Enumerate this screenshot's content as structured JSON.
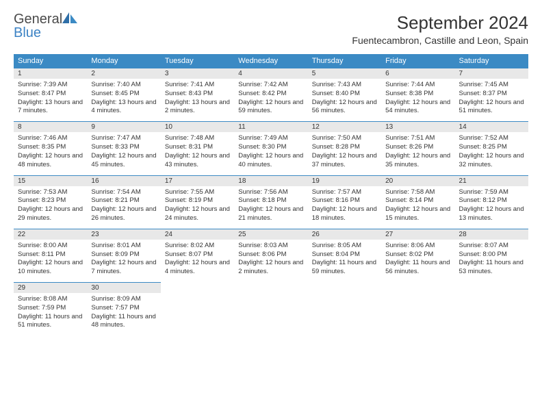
{
  "logo": {
    "word1": "General",
    "word2": "Blue"
  },
  "title": "September 2024",
  "subtitle": "Fuentecambron, Castille and Leon, Spain",
  "colors": {
    "header_bg": "#3b8ac4",
    "header_text": "#ffffff",
    "daynum_bg": "#e8e8e8",
    "row_border": "#3b8ac4",
    "logo_gray": "#4a4a4a",
    "logo_blue": "#3b82c4",
    "text": "#333333",
    "background": "#ffffff"
  },
  "weekdays": [
    "Sunday",
    "Monday",
    "Tuesday",
    "Wednesday",
    "Thursday",
    "Friday",
    "Saturday"
  ],
  "days": [
    {
      "n": "1",
      "sr": "7:39 AM",
      "ss": "8:47 PM",
      "dl": "13 hours and 7 minutes."
    },
    {
      "n": "2",
      "sr": "7:40 AM",
      "ss": "8:45 PM",
      "dl": "13 hours and 4 minutes."
    },
    {
      "n": "3",
      "sr": "7:41 AM",
      "ss": "8:43 PM",
      "dl": "13 hours and 2 minutes."
    },
    {
      "n": "4",
      "sr": "7:42 AM",
      "ss": "8:42 PM",
      "dl": "12 hours and 59 minutes."
    },
    {
      "n": "5",
      "sr": "7:43 AM",
      "ss": "8:40 PM",
      "dl": "12 hours and 56 minutes."
    },
    {
      "n": "6",
      "sr": "7:44 AM",
      "ss": "8:38 PM",
      "dl": "12 hours and 54 minutes."
    },
    {
      "n": "7",
      "sr": "7:45 AM",
      "ss": "8:37 PM",
      "dl": "12 hours and 51 minutes."
    },
    {
      "n": "8",
      "sr": "7:46 AM",
      "ss": "8:35 PM",
      "dl": "12 hours and 48 minutes."
    },
    {
      "n": "9",
      "sr": "7:47 AM",
      "ss": "8:33 PM",
      "dl": "12 hours and 45 minutes."
    },
    {
      "n": "10",
      "sr": "7:48 AM",
      "ss": "8:31 PM",
      "dl": "12 hours and 43 minutes."
    },
    {
      "n": "11",
      "sr": "7:49 AM",
      "ss": "8:30 PM",
      "dl": "12 hours and 40 minutes."
    },
    {
      "n": "12",
      "sr": "7:50 AM",
      "ss": "8:28 PM",
      "dl": "12 hours and 37 minutes."
    },
    {
      "n": "13",
      "sr": "7:51 AM",
      "ss": "8:26 PM",
      "dl": "12 hours and 35 minutes."
    },
    {
      "n": "14",
      "sr": "7:52 AM",
      "ss": "8:25 PM",
      "dl": "12 hours and 32 minutes."
    },
    {
      "n": "15",
      "sr": "7:53 AM",
      "ss": "8:23 PM",
      "dl": "12 hours and 29 minutes."
    },
    {
      "n": "16",
      "sr": "7:54 AM",
      "ss": "8:21 PM",
      "dl": "12 hours and 26 minutes."
    },
    {
      "n": "17",
      "sr": "7:55 AM",
      "ss": "8:19 PM",
      "dl": "12 hours and 24 minutes."
    },
    {
      "n": "18",
      "sr": "7:56 AM",
      "ss": "8:18 PM",
      "dl": "12 hours and 21 minutes."
    },
    {
      "n": "19",
      "sr": "7:57 AM",
      "ss": "8:16 PM",
      "dl": "12 hours and 18 minutes."
    },
    {
      "n": "20",
      "sr": "7:58 AM",
      "ss": "8:14 PM",
      "dl": "12 hours and 15 minutes."
    },
    {
      "n": "21",
      "sr": "7:59 AM",
      "ss": "8:12 PM",
      "dl": "12 hours and 13 minutes."
    },
    {
      "n": "22",
      "sr": "8:00 AM",
      "ss": "8:11 PM",
      "dl": "12 hours and 10 minutes."
    },
    {
      "n": "23",
      "sr": "8:01 AM",
      "ss": "8:09 PM",
      "dl": "12 hours and 7 minutes."
    },
    {
      "n": "24",
      "sr": "8:02 AM",
      "ss": "8:07 PM",
      "dl": "12 hours and 4 minutes."
    },
    {
      "n": "25",
      "sr": "8:03 AM",
      "ss": "8:06 PM",
      "dl": "12 hours and 2 minutes."
    },
    {
      "n": "26",
      "sr": "8:05 AM",
      "ss": "8:04 PM",
      "dl": "11 hours and 59 minutes."
    },
    {
      "n": "27",
      "sr": "8:06 AM",
      "ss": "8:02 PM",
      "dl": "11 hours and 56 minutes."
    },
    {
      "n": "28",
      "sr": "8:07 AM",
      "ss": "8:00 PM",
      "dl": "11 hours and 53 minutes."
    },
    {
      "n": "29",
      "sr": "8:08 AM",
      "ss": "7:59 PM",
      "dl": "11 hours and 51 minutes."
    },
    {
      "n": "30",
      "sr": "8:09 AM",
      "ss": "7:57 PM",
      "dl": "11 hours and 48 minutes."
    }
  ],
  "labels": {
    "sunrise": "Sunrise:",
    "sunset": "Sunset:",
    "daylight": "Daylight:"
  }
}
